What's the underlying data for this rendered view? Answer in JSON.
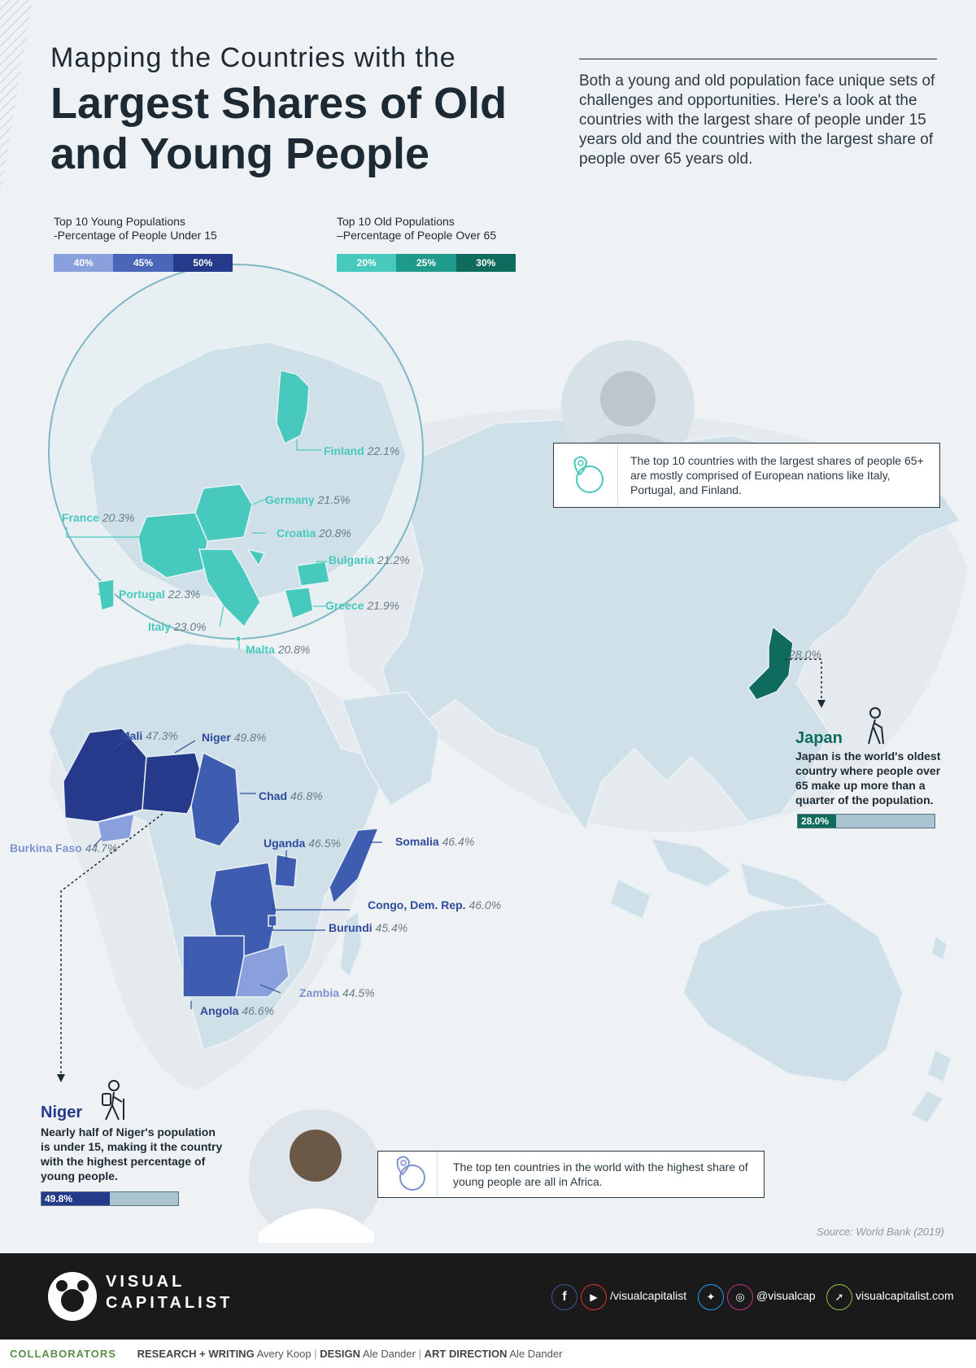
{
  "title": {
    "line1": "Mapping the Countries with the",
    "line2": "Largest Shares of Old and Young People"
  },
  "intro": "Both a young and old population face unique sets of challenges and opportunities. Here's a look at the countries with the largest share of people under 15 years old and the countries with the largest share of people over 65 years old.",
  "legend_young": {
    "title": "Top 10 Young Populations",
    "subtitle": "-Percentage of People Under 15",
    "steps": [
      "40%",
      "45%",
      "50%"
    ],
    "colors": [
      "#8aa0dc",
      "#4a66b8",
      "#263a8c"
    ]
  },
  "legend_old": {
    "title": "Top 10 Old Populations",
    "subtitle": "–Percentage of People Over 65",
    "steps": [
      "20%",
      "25%",
      "30%"
    ],
    "colors": [
      "#48c9be",
      "#1f9a8a",
      "#0f6b5e"
    ]
  },
  "old_countries": [
    {
      "name": "Finland",
      "value": "22.1%"
    },
    {
      "name": "Germany",
      "value": "21.5%"
    },
    {
      "name": "France",
      "value": "20.3%"
    },
    {
      "name": "Croatia",
      "value": "20.8%"
    },
    {
      "name": "Bulgaria",
      "value": "21.2%"
    },
    {
      "name": "Portugal",
      "value": "22.3%"
    },
    {
      "name": "Greece",
      "value": "21.9%"
    },
    {
      "name": "Italy",
      "value": "23.0%"
    },
    {
      "name": "Malta",
      "value": "20.8%"
    }
  ],
  "young_countries": [
    {
      "name": "Mali",
      "value": "47.3%"
    },
    {
      "name": "Niger",
      "value": "49.8%"
    },
    {
      "name": "Chad",
      "value": "46.8%"
    },
    {
      "name": "Burkina Faso",
      "value": "44.7%"
    },
    {
      "name": "Uganda",
      "value": "46.5%"
    },
    {
      "name": "Somalia",
      "value": "46.4%"
    },
    {
      "name": "Congo, Dem. Rep.",
      "value": "46.0%"
    },
    {
      "name": "Burundi",
      "value": "45.4%"
    },
    {
      "name": "Zambia",
      "value": "44.5%"
    },
    {
      "name": "Angola",
      "value": "46.6%"
    }
  ],
  "callout_old": "The top 10 countries with the largest shares of people 65+ are mostly comprised of European nations like Italy, Portugal, and Finland.",
  "callout_young": "The top ten countries in the world with the highest share of young people are all in Africa.",
  "japan": {
    "map_value": "28.0%",
    "name": "Japan",
    "description": "Japan is the world's oldest country where people over 65 make up more than a quarter of the population.",
    "bar_value": 0.28,
    "bar_label": "28.0%"
  },
  "niger": {
    "name": "Niger",
    "description": "Nearly half of Niger's population is under 15, making it the country with the highest percentage of young people.",
    "bar_value": 0.498,
    "bar_label": "49.8%"
  },
  "source": "Source: World Bank (2019)",
  "footer": {
    "brand_line1": "VISUAL",
    "brand_line2": "CAPITALIST",
    "social1": "/visualcapitalist",
    "social2": "@visualcap",
    "website": "visualcapitalist.com"
  },
  "collaborators": {
    "label": "COLLABORATORS",
    "research_label": "RESEARCH + WRITING",
    "research_name": "Avery Koop",
    "design_label": "DESIGN",
    "design_name": "Ale Dander",
    "art_label": "ART DIRECTION",
    "art_name": "Ale Dander"
  }
}
